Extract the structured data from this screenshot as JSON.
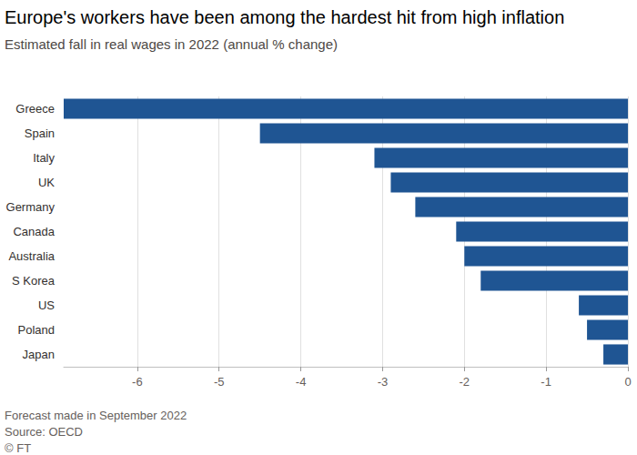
{
  "chart_data": {
    "type": "bar",
    "title": "Europe's workers have been among the hardest hit from high inflation",
    "subtitle": "Estimated fall in real wages in 2022 (annual % change)",
    "note": "Forecast made in September 2022",
    "source": "Source: OECD",
    "credit": "© FT",
    "orientation": "horizontal",
    "categories": [
      "Greece",
      "Spain",
      "Italy",
      "UK",
      "Germany",
      "Canada",
      "Australia",
      "S Korea",
      "US",
      "Poland",
      "Japan"
    ],
    "values": [
      -6.9,
      -4.5,
      -3.1,
      -2.9,
      -2.6,
      -2.1,
      -2.0,
      -1.8,
      -0.6,
      -0.5,
      -0.3
    ],
    "color": "#1f5593",
    "xlim": [
      -6.9,
      0
    ],
    "xticks": [
      -6,
      -5,
      -4,
      -3,
      -2,
      -1,
      0
    ],
    "grid": true
  }
}
